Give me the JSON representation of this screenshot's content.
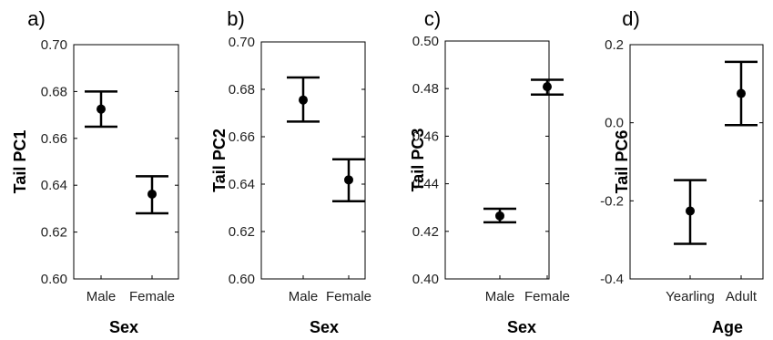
{
  "chart_data": [
    {
      "type": "scatter",
      "panel_label": "a)",
      "ylabel": "Tail PC1",
      "xlabel": "Sex",
      "categories": [
        "Male",
        "Female"
      ],
      "values": [
        0.6725,
        0.6362
      ],
      "error_low": [
        0.665,
        0.628
      ],
      "error_high": [
        0.68,
        0.6438
      ],
      "ylim": [
        0.6,
        0.7
      ],
      "yticks": [
        0.6,
        0.62,
        0.64,
        0.66,
        0.68,
        0.7
      ],
      "ytick_labels": [
        "0.60",
        "0.62",
        "0.64",
        "0.66",
        "0.68",
        "0.70"
      ]
    },
    {
      "type": "scatter",
      "panel_label": "b)",
      "ylabel": "Tail PC2",
      "xlabel": "Sex",
      "categories": [
        "Male",
        "Female"
      ],
      "values": [
        0.6755,
        0.6418
      ],
      "error_low": [
        0.6664,
        0.6328
      ],
      "error_high": [
        0.685,
        0.6505
      ],
      "ylim": [
        0.6,
        0.7
      ],
      "yticks": [
        0.6,
        0.62,
        0.64,
        0.66,
        0.68,
        0.7
      ],
      "ytick_labels": [
        "0.60",
        "0.62",
        "0.64",
        "0.66",
        "0.68",
        "0.70"
      ]
    },
    {
      "type": "scatter",
      "panel_label": "c)",
      "ylabel": "Tail PC3",
      "xlabel": "Sex",
      "categories": [
        "Male",
        "Female"
      ],
      "values": [
        0.4265,
        0.4808
      ],
      "error_low": [
        0.4238,
        0.4775
      ],
      "error_high": [
        0.4295,
        0.4837
      ],
      "ylim": [
        0.4,
        0.5
      ],
      "yticks": [
        0.4,
        0.42,
        0.44,
        0.46,
        0.48,
        0.5
      ],
      "ytick_labels": [
        "0.40",
        "0.42",
        "0.44",
        "0.46",
        "0.48",
        "0.50"
      ]
    },
    {
      "type": "scatter",
      "panel_label": "d)",
      "ylabel": "Tail PC6",
      "xlabel": "Age",
      "categories": [
        "Yearling",
        "Adult"
      ],
      "values": [
        -0.226,
        0.075
      ],
      "error_low": [
        -0.31,
        -0.006
      ],
      "error_high": [
        -0.147,
        0.156
      ],
      "ylim": [
        -0.4,
        0.2
      ],
      "yticks": [
        -0.4,
        -0.2,
        0.0,
        0.2
      ],
      "ytick_labels": [
        "-0.4",
        "-0.2",
        "0.0",
        "0.2"
      ]
    }
  ]
}
